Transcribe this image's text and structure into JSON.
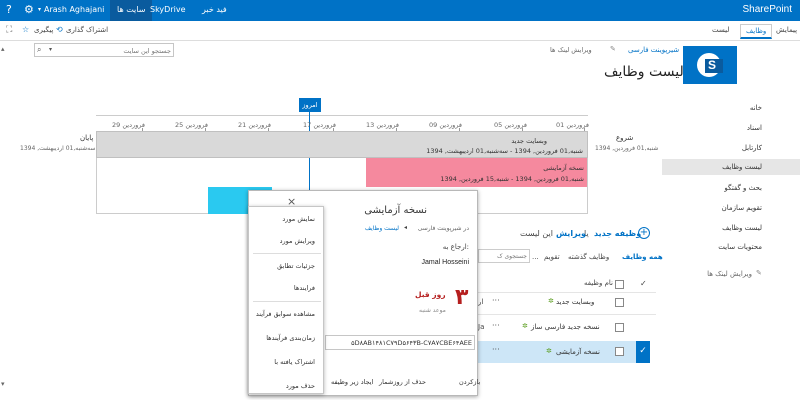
{
  "suite": {
    "brand": "SharePoint",
    "links": [
      "فید خبر",
      "SkyDrive",
      "سایت ها"
    ],
    "user": "Arash Aghajani",
    "icons": [
      "gear-icon",
      "help-icon"
    ]
  },
  "ribbon": {
    "tabs": [
      "پیمایش",
      "وظایف",
      "لیست"
    ],
    "share": "اشتراک گذاری",
    "follow": "پیگیری"
  },
  "search": {
    "placeholder": "جستجو این سایت"
  },
  "header": {
    "breadcrumb": "شیرپوینت فارسی",
    "edit_links": "ویرایش لینک ها",
    "title": "لیست وظایف"
  },
  "nav": {
    "items": [
      "خانه",
      "اسناد",
      "کارتابل",
      "لیست وظایف",
      "بحث و گفتگو",
      "تقویم سازمان",
      "لیست وظایف",
      "محتویات سایت"
    ],
    "selected_index": 3,
    "edit_links": "ویرایش لینک ها"
  },
  "timeline": {
    "today_label": "امروز",
    "start_label": "شروع",
    "start_date": "شنبه,01 فروردین, 1394",
    "end_label": "پایان",
    "end_date": "سه‌شنبه,01 اردیبهشت, 1394",
    "ticks": [
      "فروردین 01",
      "فروردین 05",
      "فروردین 09",
      "فروردین 13",
      "فروردین 17",
      "فروردین 21",
      "فروردین 25",
      "فروردین 29"
    ],
    "bars": [
      {
        "title": "وبسایت جدید",
        "dates": "شنبه,01 فروردین, 1394 - سه‌شنبه,01 اردیبهشت, 1394",
        "color": "#d9d9d9"
      },
      {
        "title": "نسخه آزمایشی",
        "dates": "شنبه,01 فروردین, 1394 - شنبه,15 فروردین, 1394",
        "color": "#f5899e"
      }
    ],
    "extra_bar_color": "#2ac9f0"
  },
  "list": {
    "new_task": "وظیفه جدید",
    "or": "یا",
    "edit": "ویرایش",
    "this_list": "این لیست",
    "views": [
      "همه وظایف",
      "وظایف گذشته",
      "تقویم"
    ],
    "col_name": "نام وظیفه",
    "search_ph": "جستجوی ک",
    "items": [
      {
        "name": "وبسایت جدید",
        "checked": false,
        "selected": false
      },
      {
        "name": "نسخه جدید فارسی ساز",
        "checked": false,
        "selected": false
      },
      {
        "name": "نسخه آزمایشی",
        "checked": false,
        "selected": true
      }
    ]
  },
  "callout": {
    "title": "نسخه آزمایشی",
    "path_a": "در شیرپوینت فارسی",
    "path_b": "لیست وظایف",
    "assigned_label": "ارجاع به:",
    "assigned_to": "Jamal Hosseini",
    "days_num": "۳",
    "days_text": "روز قبل",
    "days_sub": "موعد شنبه",
    "guid": "۵D۸AB۱۴۸۱C۷۹D۵۶۴۳B-C۷A۷CBE۶۴AEE",
    "buttons": [
      "بازکردن",
      "حذف از روزشمار",
      "ایجاد زیر وظیفه"
    ],
    "close": "×",
    "more": "..."
  },
  "menu": {
    "items": [
      "نمایش مورد",
      "ویرایش مورد",
      "جزئیات تطابق",
      "فرایندها",
      "مشاهده سوابق فرآیند",
      "زمان‌بندی فرآیندها",
      "اشتراک یافته با",
      "حذف مورد"
    ]
  }
}
